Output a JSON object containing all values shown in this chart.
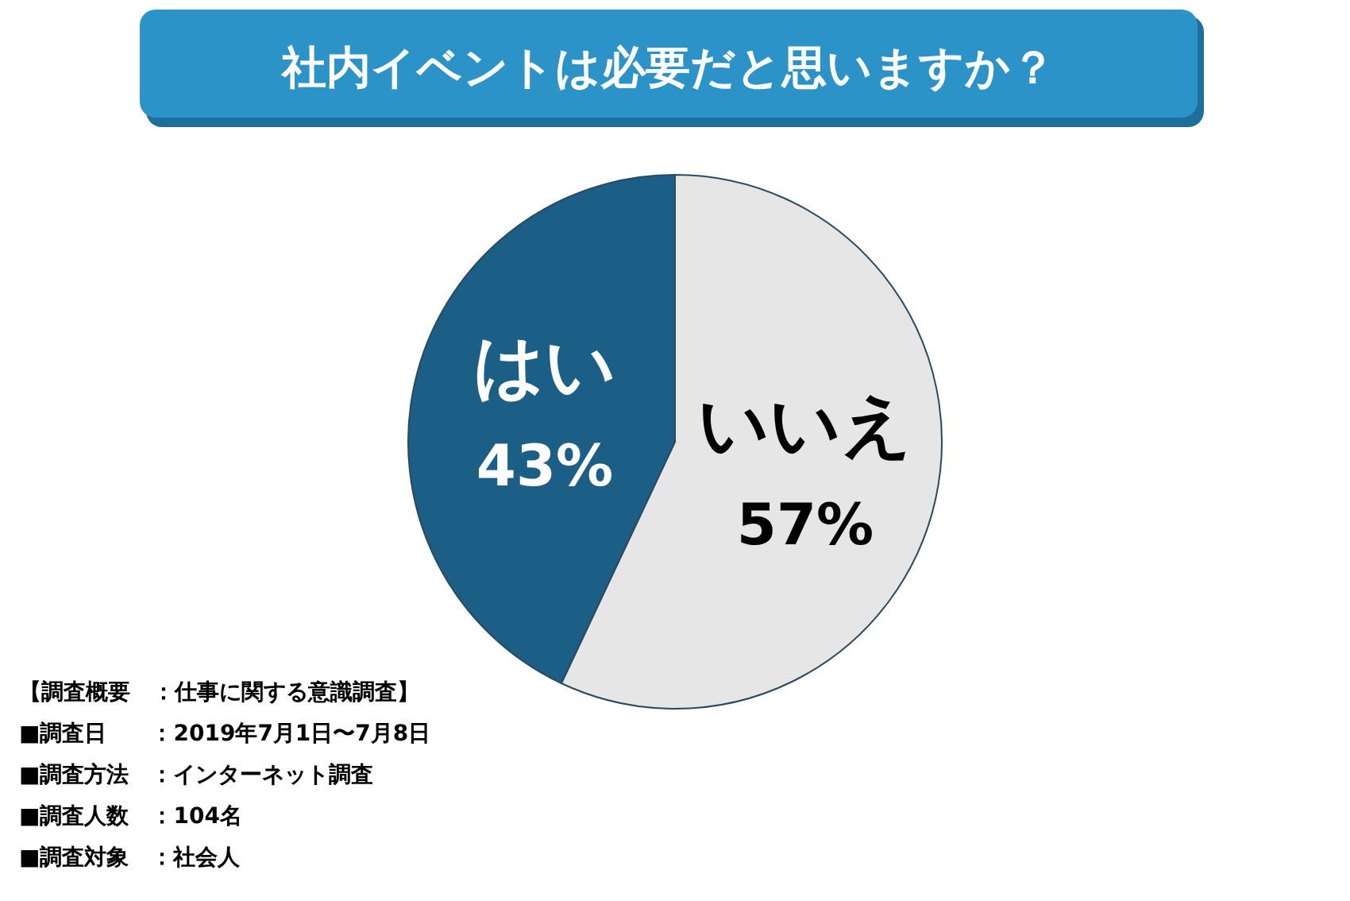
{
  "chart_data": {
    "type": "pie",
    "title": "社内イベントは必要だと思いますか？",
    "categories": [
      "いいえ",
      "はい"
    ],
    "values": [
      57,
      43
    ],
    "value_labels": [
      "57%",
      "43%"
    ],
    "colors": [
      "#e6e6e6",
      "#1b5e86"
    ],
    "legend": false,
    "annotations": [
      "【調査概要　：仕事に関する意識調査】",
      "■調査日　　：2019年7月1日〜7月8日",
      "■調査方法　：インターネット調査",
      "■調査人数　：104名",
      "■調査対象　：社会人"
    ]
  }
}
